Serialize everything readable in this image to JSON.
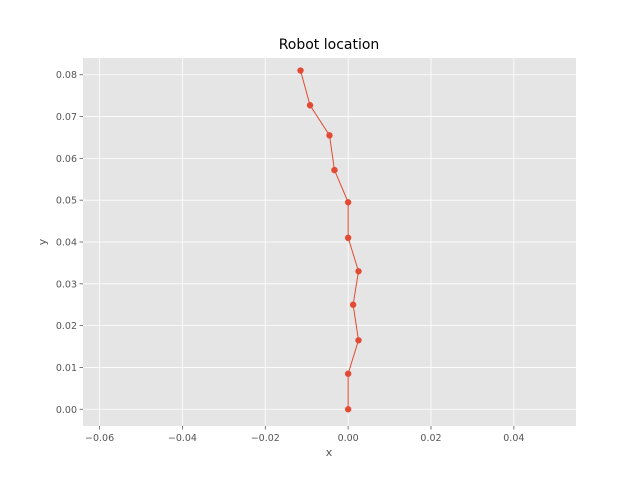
{
  "chart_data": {
    "type": "line",
    "title": "Robot location",
    "xlabel": "x",
    "ylabel": "y",
    "xlim": [
      -0.064,
      0.055
    ],
    "ylim": [
      -0.004,
      0.084
    ],
    "grid": true,
    "x_ticks": [
      {
        "value": -0.06,
        "label": "−0.06"
      },
      {
        "value": -0.04,
        "label": "−0.04"
      },
      {
        "value": -0.02,
        "label": "−0.02"
      },
      {
        "value": 0.0,
        "label": "0.00"
      },
      {
        "value": 0.02,
        "label": "0.02"
      },
      {
        "value": 0.04,
        "label": "0.04"
      }
    ],
    "y_ticks": [
      {
        "value": 0.0,
        "label": "0.00"
      },
      {
        "value": 0.01,
        "label": "0.01"
      },
      {
        "value": 0.02,
        "label": "0.02"
      },
      {
        "value": 0.03,
        "label": "0.03"
      },
      {
        "value": 0.04,
        "label": "0.04"
      },
      {
        "value": 0.05,
        "label": "0.05"
      },
      {
        "value": 0.06,
        "label": "0.06"
      },
      {
        "value": 0.07,
        "label": "0.07"
      },
      {
        "value": 0.08,
        "label": "0.08"
      }
    ],
    "series": [
      {
        "color": "#e24a33",
        "x": [
          0.0,
          0.0,
          0.0025,
          0.0012,
          0.0025,
          0.0,
          0.0,
          -0.0033,
          -0.0045,
          -0.0092,
          -0.0115
        ],
        "y": [
          0.0,
          0.0085,
          0.0165,
          0.025,
          0.033,
          0.041,
          0.0495,
          0.0572,
          0.0655,
          0.0727,
          0.081
        ]
      }
    ]
  },
  "colors": {
    "plot_background": "#e5e5e5",
    "grid": "#ffffff",
    "series": "#e24a33"
  }
}
